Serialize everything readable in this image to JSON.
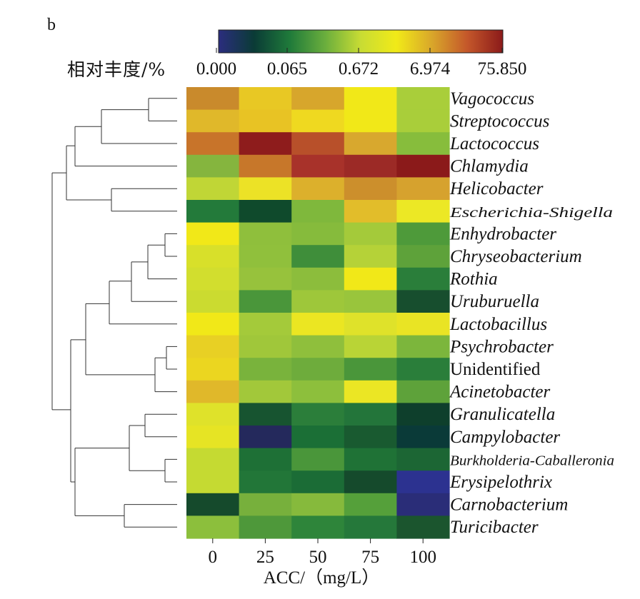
{
  "panel_label": "b",
  "colorbar": {
    "title": "相对丰度/%",
    "tick_labels": [
      "0.000",
      "0.065",
      "0.672",
      "6.974",
      "75.850"
    ],
    "stops": [
      "#2b2d7e",
      "#0a3b36",
      "#1f7a3a",
      "#6aae3d",
      "#c8dc34",
      "#f1ea18",
      "#d9a72a",
      "#c4572a",
      "#8b1a1a"
    ]
  },
  "chart_data": {
    "type": "heatmap",
    "title": "",
    "xlabel": "ACC/（mg/L）",
    "ylabel": "",
    "x_categories": [
      "0",
      "25",
      "50",
      "75",
      "100"
    ],
    "rows": [
      {
        "name": "Vagococcus",
        "italic": true,
        "colors": [
          "#c98a2c",
          "#e8c824",
          "#d7a62c",
          "#f1e818",
          "#a9ce3a"
        ]
      },
      {
        "name": "Streptococcus",
        "italic": true,
        "colors": [
          "#e0b82a",
          "#e8c324",
          "#efd920",
          "#f1e818",
          "#a9ce3a"
        ]
      },
      {
        "name": "Lactococcus",
        "italic": true,
        "colors": [
          "#c8742a",
          "#8e1c1c",
          "#b8502a",
          "#d8a82e",
          "#87bd3c"
        ]
      },
      {
        "name": "Chlamydia",
        "italic": true,
        "colors": [
          "#85b53e",
          "#c7772a",
          "#a8322a",
          "#9c2a26",
          "#8b1a1a"
        ]
      },
      {
        "name": "Helicobacter",
        "italic": true,
        "colors": [
          "#c0d636",
          "#ece226",
          "#dcb02c",
          "#cc8f2c",
          "#d6a22e"
        ]
      },
      {
        "name": "Escherichia-Shigella",
        "italic": true,
        "condensed": true,
        "colors": [
          "#237a3a",
          "#0f4a2c",
          "#7fb83c",
          "#e2bd2a",
          "#ece825"
        ]
      },
      {
        "name": "Enhydrobacter",
        "italic": true,
        "colors": [
          "#f1e818",
          "#8fbf3c",
          "#86bb3c",
          "#a4ca3a",
          "#4e9a3a"
        ]
      },
      {
        "name": "Chryseobacterium",
        "italic": true,
        "colors": [
          "#d8e02a",
          "#90c03c",
          "#3f8e3a",
          "#b5d238",
          "#5ea23a"
        ]
      },
      {
        "name": "Rothia",
        "italic": true,
        "colors": [
          "#d2de2e",
          "#97c23c",
          "#8cbd3c",
          "#f1e818",
          "#2a7e3a"
        ]
      },
      {
        "name": "Uruburuella",
        "italic": true,
        "colors": [
          "#cbdb30",
          "#4a963a",
          "#9ec73a",
          "#99c53c",
          "#174e2e"
        ]
      },
      {
        "name": "Lactobacillus",
        "italic": true,
        "colors": [
          "#f1e818",
          "#a4ca3a",
          "#ebe622",
          "#dfe22a",
          "#e9e424"
        ]
      },
      {
        "name": "Psychrobacter",
        "italic": true,
        "colors": [
          "#e8d024",
          "#a0c73a",
          "#8fbf3c",
          "#b9d436",
          "#7cb63c"
        ]
      },
      {
        "name": "Unidentified",
        "italic": false,
        "colors": [
          "#ebd620",
          "#79b33c",
          "#6eac3c",
          "#4a963a",
          "#2a7e3a"
        ]
      },
      {
        "name": "Acinetobacter",
        "italic": true,
        "colors": [
          "#e0b82a",
          "#a2c83a",
          "#8dbf3c",
          "#ebe624",
          "#5ea23a"
        ]
      },
      {
        "name": "Granulicatella",
        "italic": true,
        "colors": [
          "#dfe22a",
          "#175430",
          "#2b7e3a",
          "#23753a",
          "#0e3f2c"
        ]
      },
      {
        "name": "Campylobacter",
        "italic": true,
        "colors": [
          "#e6e424",
          "#24295c",
          "#1b6f36",
          "#195a30",
          "#0a3a38"
        ]
      },
      {
        "name": "Burkholderia-Caballeronia",
        "italic": true,
        "condensed": true,
        "colors": [
          "#c5da32",
          "#1e7036",
          "#4a963a",
          "#1f7236",
          "#1c6634"
        ]
      },
      {
        "name": "Erysipelothrix",
        "italic": true,
        "colors": [
          "#c5da32",
          "#227638",
          "#1b6c36",
          "#154a2c",
          "#2c3290"
        ]
      },
      {
        "name": "Carnobacterium",
        "italic": true,
        "colors": [
          "#154a2c",
          "#77b03c",
          "#86ba3c",
          "#55a03a",
          "#2a2d78"
        ]
      },
      {
        "name": "Turicibacter",
        "italic": true,
        "colors": [
          "#8cbf3c",
          "#4e983a",
          "#2e853a",
          "#25783a",
          "#1b552e"
        ]
      }
    ]
  }
}
